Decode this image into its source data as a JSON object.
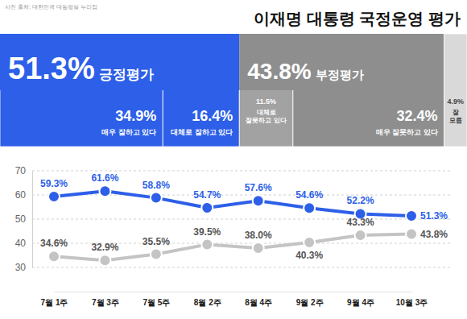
{
  "chart_data": [
    {
      "type": "bar",
      "title": "이재명 대통령 국정운영 평가",
      "annotations": [
        "사진 출처: 대한민국 대통령실 누리집"
      ],
      "orientation": "horizontal",
      "stacked": true,
      "data_labels": true,
      "tick_labels": false,
      "categories": [
        null
      ],
      "xlim": [
        0,
        100.1
      ],
      "totals": [
        {
          "name": "긍정평가",
          "value": 51.3,
          "value_label": "51.3%",
          "color": "#2d5fe8"
        },
        {
          "name": "부정평가",
          "value": 43.8,
          "value_label": "43.8%",
          "color": "#8e8e8e"
        }
      ],
      "series": [
        {
          "name": "매우 잘하고 있다",
          "color": "#2d5fe8",
          "values": [
            34.9
          ],
          "value_labels": [
            "34.9%"
          ]
        },
        {
          "name": "대체로 잘하고 있다",
          "color": "#2d5fe8",
          "values": [
            16.4
          ],
          "value_labels": [
            "16.4%"
          ]
        },
        {
          "name": "대체로 잘못하고 있다",
          "color": "#a2a2a2",
          "values": [
            11.5
          ],
          "value_labels": [
            "11.5%"
          ]
        },
        {
          "name": "매우 잘못하고 있다",
          "color": "#8e8e8e",
          "values": [
            32.4
          ],
          "value_labels": [
            "32.4%"
          ]
        },
        {
          "name": "잘 모름",
          "color": "#d9d9d9",
          "values": [
            4.9
          ],
          "value_labels": [
            "4.9%"
          ]
        }
      ]
    },
    {
      "type": "line",
      "categories": [
        "7월 1주",
        "7월 3주",
        "7월 5주",
        "8월 2주",
        "8월 4주",
        "9월 2주",
        "9월 4주",
        "10월 3주"
      ],
      "ylim": [
        30,
        70
      ],
      "yticks": [
        30,
        40,
        50,
        60,
        70
      ],
      "grid": true,
      "data_labels": true,
      "marker": "circle",
      "line_style": "solid",
      "series": [
        {
          "color": "#2d5fe8",
          "values": [
            59.3,
            61.6,
            58.8,
            54.7,
            57.6,
            54.6,
            52.2,
            51.3
          ],
          "value_labels": [
            "59.3%",
            "61.6%",
            "58.8%",
            "54.7%",
            "57.6%",
            "54.6%",
            "52.2%",
            "51.3%"
          ]
        },
        {
          "color": "#c4c4c4",
          "values": [
            34.6,
            32.9,
            35.5,
            39.5,
            38.0,
            40.3,
            43.3,
            43.8
          ],
          "value_labels": [
            "34.6%",
            "32.9%",
            "35.5%",
            "39.5%",
            "38.0%",
            "40.3%",
            "43.3%",
            "43.8%"
          ]
        }
      ]
    }
  ]
}
